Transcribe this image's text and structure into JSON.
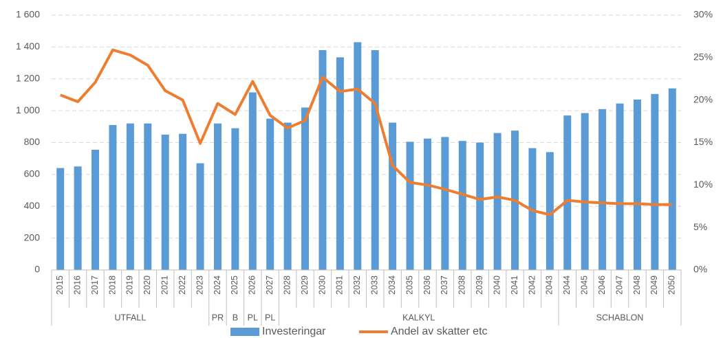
{
  "chart_data": {
    "type": "bar-line",
    "categories": [
      "2015",
      "2016",
      "2017",
      "2018",
      "2019",
      "2020",
      "2021",
      "2022",
      "2023",
      "2024",
      "2025",
      "2026",
      "2027",
      "2028",
      "2029",
      "2030",
      "2031",
      "2032",
      "2033",
      "2034",
      "2035",
      "2036",
      "2037",
      "2038",
      "2039",
      "2040",
      "2041",
      "2042",
      "2043",
      "2044",
      "2045",
      "2046",
      "2047",
      "2048",
      "2049",
      "2050"
    ],
    "groups": [
      {
        "label": "UTFALL",
        "span": 9
      },
      {
        "label": "PR",
        "span": 1
      },
      {
        "label": "B",
        "span": 1
      },
      {
        "label": "PL",
        "span": 1
      },
      {
        "label": "PL",
        "span": 1
      },
      {
        "label": "KALKYL",
        "span": 16
      },
      {
        "label": "SCHABLON",
        "span": 7
      }
    ],
    "series": [
      {
        "name": "Investeringar",
        "color": "#5b9bd5",
        "kind": "bar",
        "values": [
          640,
          650,
          755,
          910,
          920,
          920,
          850,
          855,
          670,
          920,
          890,
          1115,
          950,
          925,
          1020,
          1380,
          1335,
          1430,
          1380,
          925,
          805,
          825,
          835,
          810,
          800,
          860,
          875,
          765,
          740,
          970,
          985,
          1010,
          1045,
          1070,
          1105,
          1140
        ]
      },
      {
        "name": "Andel av skatter etc",
        "color": "#ed7d31",
        "kind": "line",
        "axis": "y2",
        "values": [
          20.6,
          19.8,
          22.1,
          25.9,
          25.3,
          24.1,
          21.1,
          20.0,
          14.9,
          19.6,
          18.3,
          22.2,
          18.2,
          16.7,
          17.6,
          22.7,
          21.0,
          21.3,
          19.6,
          12.3,
          10.3,
          10.0,
          9.5,
          8.9,
          8.3,
          8.6,
          8.2,
          7.0,
          6.5,
          8.2,
          8.0,
          7.9,
          7.8,
          7.8,
          7.7,
          7.7
        ]
      }
    ],
    "ylim": [
      0,
      1600
    ],
    "yticks": [
      0,
      200,
      400,
      600,
      800,
      {
        "value": 1000,
        "label": "1 000"
      },
      {
        "value": 1200,
        "label": "1 200"
      },
      {
        "value": 1400,
        "label": "1 400"
      },
      {
        "value": 1600,
        "label": "1 600"
      }
    ],
    "y2lim": [
      0,
      30
    ],
    "y2ticks": [
      {
        "value": 0,
        "label": "0%"
      },
      {
        "value": 5,
        "label": "5%"
      },
      {
        "value": 10,
        "label": "10%"
      },
      {
        "value": 15,
        "label": "15%"
      },
      {
        "value": 20,
        "label": "20%"
      },
      {
        "value": 25,
        "label": "25%"
      },
      {
        "value": 30,
        "label": "30%"
      }
    ],
    "grid": true
  }
}
